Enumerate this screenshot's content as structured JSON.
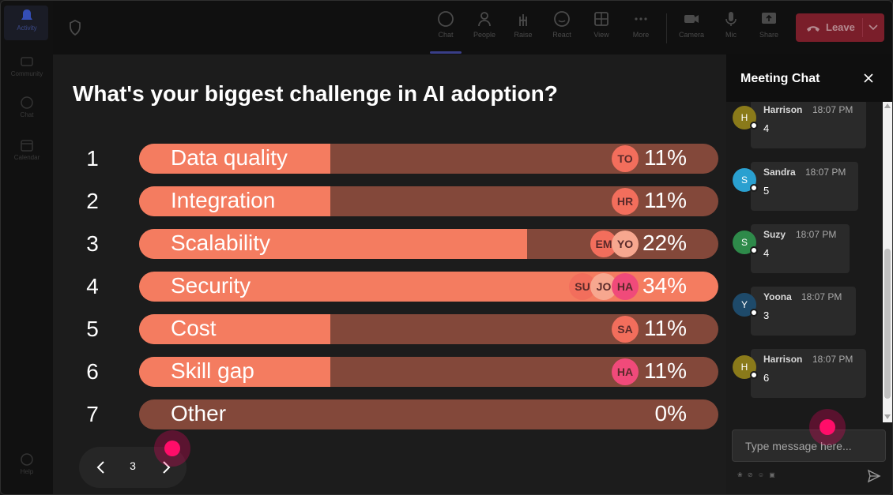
{
  "rail": {
    "items": [
      {
        "label": "Activity",
        "icon": "bell-icon"
      },
      {
        "label": "Community",
        "icon": "community-icon"
      },
      {
        "label": "Chat",
        "icon": "chat-icon"
      },
      {
        "label": "Calendar",
        "icon": "calendar-icon"
      },
      {
        "label": "Help",
        "icon": "help-icon"
      }
    ]
  },
  "toolbar": {
    "chat": "Chat",
    "people": "People",
    "raise": "Raise",
    "react": "React",
    "view": "View",
    "more": "More",
    "camera": "Camera",
    "mic": "Mic",
    "share": "Share",
    "leave": "Leave"
  },
  "poll": {
    "title": "What's your biggest challenge in AI adoption?",
    "options": [
      {
        "num": "1",
        "label": "Data quality",
        "percent": "11%",
        "fraction": 0.33,
        "voters": [
          "TO"
        ]
      },
      {
        "num": "2",
        "label": "Integration",
        "percent": "11%",
        "fraction": 0.33,
        "voters": [
          "HR"
        ]
      },
      {
        "num": "3",
        "label": "Scalability",
        "percent": "22%",
        "fraction": 0.67,
        "voters": [
          "EM",
          "YO"
        ]
      },
      {
        "num": "4",
        "label": "Security",
        "percent": "34%",
        "fraction": 1.0,
        "voters": [
          "SU",
          "JO",
          "HA"
        ]
      },
      {
        "num": "5",
        "label": "Cost",
        "percent": "11%",
        "fraction": 0.33,
        "voters": [
          "SA"
        ]
      },
      {
        "num": "6",
        "label": "Skill gap",
        "percent": "11%",
        "fraction": 0.33,
        "voters": [
          "HA"
        ]
      },
      {
        "num": "7",
        "label": "Other",
        "percent": "0%",
        "fraction": 0.0,
        "voters": []
      }
    ],
    "page": "3"
  },
  "chat": {
    "title": "Meeting Chat",
    "messages": [
      {
        "initial": "H",
        "name": "Harrison",
        "time": "18:07 PM",
        "text": "4",
        "color": "#8a7a1a"
      },
      {
        "initial": "S",
        "name": "Sandra",
        "time": "18:07 PM",
        "text": "5",
        "color": "#2aa0d0"
      },
      {
        "initial": "S",
        "name": "Suzy",
        "time": "18:07 PM",
        "text": "4",
        "color": "#2e8a4a"
      },
      {
        "initial": "Y",
        "name": "Yoona",
        "time": "18:07 PM",
        "text": "3",
        "color": "#1e4a6a"
      },
      {
        "initial": "H",
        "name": "Harrison",
        "time": "18:07 PM",
        "text": "6",
        "color": "#8a7a1a"
      }
    ],
    "input_placeholder": "Type message here..."
  },
  "colors": {
    "bar_fill": "#f47c60",
    "bar_track": "#83483a",
    "leave_button": "#7a1e2a",
    "cursor_highlight": "#ff0d69"
  }
}
